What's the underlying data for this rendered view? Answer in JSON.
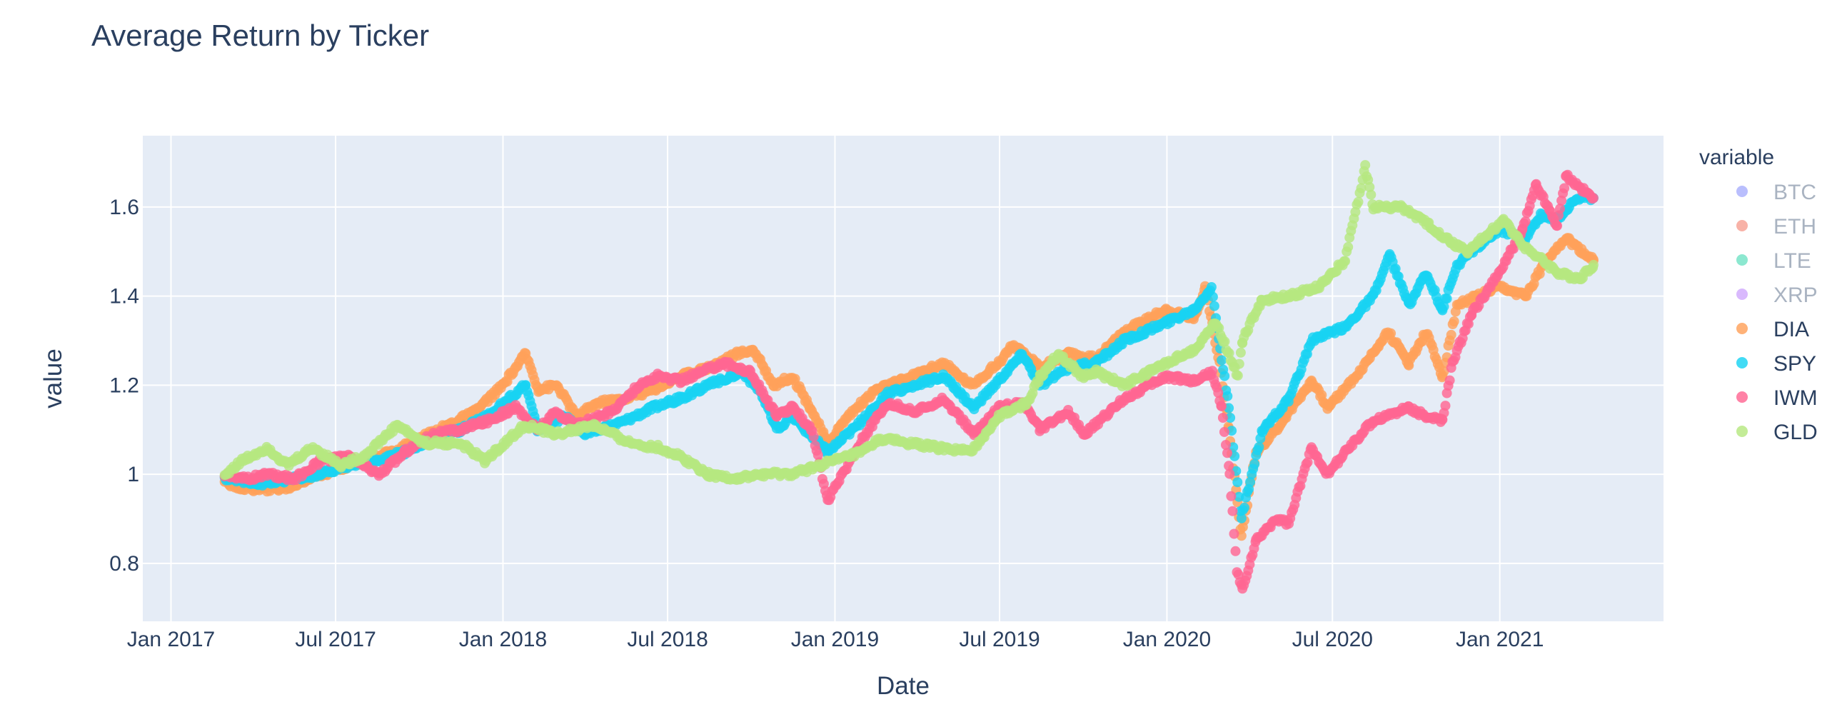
{
  "chart_data": {
    "type": "scatter",
    "title": "Average Return by Ticker",
    "xlabel": "Date",
    "ylabel": "value",
    "x_axis_type": "date",
    "xlim": [
      "2016-12-01",
      "2021-06-30"
    ],
    "ylim": [
      0.67,
      1.76
    ],
    "x_ticks": [
      {
        "value": "2017-01-01",
        "label": "Jan 2017"
      },
      {
        "value": "2017-07-01",
        "label": "Jul 2017"
      },
      {
        "value": "2018-01-01",
        "label": "Jan 2018"
      },
      {
        "value": "2018-07-01",
        "label": "Jul 2018"
      },
      {
        "value": "2019-01-01",
        "label": "Jan 2019"
      },
      {
        "value": "2019-07-01",
        "label": "Jul 2019"
      },
      {
        "value": "2020-01-01",
        "label": "Jan 2020"
      },
      {
        "value": "2020-07-01",
        "label": "Jul 2020"
      },
      {
        "value": "2021-01-01",
        "label": "Jan 2021"
      }
    ],
    "y_ticks": [
      {
        "value": 0.8,
        "label": "0.8"
      },
      {
        "value": 1.0,
        "label": "1"
      },
      {
        "value": 1.2,
        "label": "1.2"
      },
      {
        "value": 1.4,
        "label": "1.4"
      },
      {
        "value": 1.6,
        "label": "1.6"
      }
    ],
    "grid": true,
    "plot_background": "#e5ecf6",
    "legend": {
      "title": "variable",
      "placement": "right",
      "entries": [
        {
          "name": "BTC",
          "color": "#636efa",
          "hidden": true
        },
        {
          "name": "ETH",
          "color": "#ef553b",
          "hidden": true
        },
        {
          "name": "LTE",
          "color": "#00cc96",
          "hidden": true
        },
        {
          "name": "XRP",
          "color": "#ab63fa",
          "hidden": true
        },
        {
          "name": "DIA",
          "color": "#ffa15a",
          "hidden": false
        },
        {
          "name": "SPY",
          "color": "#19d3f3",
          "hidden": false
        },
        {
          "name": "IWM",
          "color": "#ff6692",
          "hidden": false
        },
        {
          "name": "GLD",
          "color": "#b6e880",
          "hidden": false
        }
      ]
    },
    "series": [
      {
        "name": "DIA",
        "color": "#ffa15a",
        "points": [
          [
            "2017-03-01",
            0.98
          ],
          [
            "2017-03-20",
            0.97
          ],
          [
            "2017-04-15",
            0.965
          ],
          [
            "2017-05-10",
            0.97
          ],
          [
            "2017-06-01",
            0.99
          ],
          [
            "2017-07-01",
            1.01
          ],
          [
            "2017-08-01",
            1.03
          ],
          [
            "2017-09-01",
            1.05
          ],
          [
            "2017-10-01",
            1.08
          ],
          [
            "2017-11-01",
            1.11
          ],
          [
            "2017-12-01",
            1.14
          ],
          [
            "2018-01-01",
            1.2
          ],
          [
            "2018-01-26",
            1.27
          ],
          [
            "2018-02-09",
            1.19
          ],
          [
            "2018-03-01",
            1.2
          ],
          [
            "2018-03-23",
            1.13
          ],
          [
            "2018-04-15",
            1.16
          ],
          [
            "2018-05-15",
            1.17
          ],
          [
            "2018-06-15",
            1.19
          ],
          [
            "2018-07-15",
            1.22
          ],
          [
            "2018-08-15",
            1.24
          ],
          [
            "2018-09-15",
            1.27
          ],
          [
            "2018-10-03",
            1.28
          ],
          [
            "2018-10-26",
            1.2
          ],
          [
            "2018-11-15",
            1.22
          ],
          [
            "2018-12-05",
            1.15
          ],
          [
            "2018-12-24",
            1.07
          ],
          [
            "2019-01-15",
            1.13
          ],
          [
            "2019-02-15",
            1.19
          ],
          [
            "2019-03-15",
            1.21
          ],
          [
            "2019-04-30",
            1.25
          ],
          [
            "2019-05-31",
            1.2
          ],
          [
            "2019-06-30",
            1.25
          ],
          [
            "2019-07-15",
            1.29
          ],
          [
            "2019-08-15",
            1.24
          ],
          [
            "2019-09-15",
            1.27
          ],
          [
            "2019-10-15",
            1.26
          ],
          [
            "2019-11-15",
            1.32
          ],
          [
            "2019-12-31",
            1.37
          ],
          [
            "2020-01-31",
            1.35
          ],
          [
            "2020-02-12",
            1.42
          ],
          [
            "2020-02-28",
            1.25
          ],
          [
            "2020-03-09",
            1.1
          ],
          [
            "2020-03-23",
            0.86
          ],
          [
            "2020-04-08",
            1.05
          ],
          [
            "2020-04-30",
            1.1
          ],
          [
            "2020-06-08",
            1.21
          ],
          [
            "2020-06-26",
            1.15
          ],
          [
            "2020-07-31",
            1.23
          ],
          [
            "2020-08-31",
            1.32
          ],
          [
            "2020-09-23",
            1.25
          ],
          [
            "2020-10-12",
            1.32
          ],
          [
            "2020-10-30",
            1.22
          ],
          [
            "2020-11-15",
            1.38
          ],
          [
            "2020-12-31",
            1.42
          ],
          [
            "2021-01-29",
            1.4
          ],
          [
            "2021-02-24",
            1.49
          ],
          [
            "2021-03-15",
            1.53
          ],
          [
            "2021-04-01",
            1.5
          ],
          [
            "2021-04-14",
            1.48
          ]
        ]
      },
      {
        "name": "SPY",
        "color": "#19d3f3",
        "points": [
          [
            "2017-03-01",
            0.99
          ],
          [
            "2017-04-13",
            0.98
          ],
          [
            "2017-05-15",
            0.99
          ],
          [
            "2017-06-15",
            1.0
          ],
          [
            "2017-07-15",
            1.02
          ],
          [
            "2017-08-15",
            1.03
          ],
          [
            "2017-09-15",
            1.05
          ],
          [
            "2017-10-15",
            1.08
          ],
          [
            "2017-11-15",
            1.1
          ],
          [
            "2017-12-15",
            1.13
          ],
          [
            "2018-01-26",
            1.2
          ],
          [
            "2018-02-08",
            1.1
          ],
          [
            "2018-03-10",
            1.13
          ],
          [
            "2018-04-02",
            1.09
          ],
          [
            "2018-05-15",
            1.12
          ],
          [
            "2018-06-15",
            1.15
          ],
          [
            "2018-07-15",
            1.17
          ],
          [
            "2018-08-15",
            1.2
          ],
          [
            "2018-09-20",
            1.23
          ],
          [
            "2018-10-10",
            1.19
          ],
          [
            "2018-10-29",
            1.1
          ],
          [
            "2018-11-15",
            1.13
          ],
          [
            "2018-12-24",
            1.05
          ],
          [
            "2019-01-31",
            1.12
          ],
          [
            "2019-02-28",
            1.18
          ],
          [
            "2019-04-30",
            1.22
          ],
          [
            "2019-06-03",
            1.15
          ],
          [
            "2019-07-26",
            1.27
          ],
          [
            "2019-08-15",
            1.2
          ],
          [
            "2019-09-15",
            1.24
          ],
          [
            "2019-10-15",
            1.25
          ],
          [
            "2019-11-15",
            1.3
          ],
          [
            "2019-12-31",
            1.34
          ],
          [
            "2020-01-31",
            1.37
          ],
          [
            "2020-02-19",
            1.42
          ],
          [
            "2020-03-09",
            1.15
          ],
          [
            "2020-03-23",
            0.9
          ],
          [
            "2020-04-15",
            1.1
          ],
          [
            "2020-05-15",
            1.17
          ],
          [
            "2020-06-08",
            1.3
          ],
          [
            "2020-07-15",
            1.33
          ],
          [
            "2020-08-15",
            1.4
          ],
          [
            "2020-09-02",
            1.49
          ],
          [
            "2020-09-23",
            1.38
          ],
          [
            "2020-10-12",
            1.45
          ],
          [
            "2020-10-30",
            1.37
          ],
          [
            "2020-11-15",
            1.47
          ],
          [
            "2020-12-31",
            1.55
          ],
          [
            "2021-01-29",
            1.53
          ],
          [
            "2021-02-15",
            1.58
          ],
          [
            "2021-03-04",
            1.57
          ],
          [
            "2021-03-26",
            1.62
          ],
          [
            "2021-04-14",
            1.62
          ]
        ]
      },
      {
        "name": "IWM",
        "color": "#ff6692",
        "points": [
          [
            "2017-03-01",
            1.0
          ],
          [
            "2017-03-27",
            0.99
          ],
          [
            "2017-04-15",
            1.0
          ],
          [
            "2017-05-17",
            0.99
          ],
          [
            "2017-06-15",
            1.03
          ],
          [
            "2017-07-15",
            1.04
          ],
          [
            "2017-08-18",
            1.0
          ],
          [
            "2017-09-15",
            1.05
          ],
          [
            "2017-10-15",
            1.09
          ],
          [
            "2017-11-15",
            1.1
          ],
          [
            "2017-12-15",
            1.12
          ],
          [
            "2018-01-15",
            1.15
          ],
          [
            "2018-02-08",
            1.1
          ],
          [
            "2018-02-28",
            1.14
          ],
          [
            "2018-03-23",
            1.11
          ],
          [
            "2018-04-30",
            1.14
          ],
          [
            "2018-05-31",
            1.2
          ],
          [
            "2018-06-20",
            1.22
          ],
          [
            "2018-07-15",
            1.21
          ],
          [
            "2018-08-31",
            1.25
          ],
          [
            "2018-09-30",
            1.23
          ],
          [
            "2018-10-29",
            1.13
          ],
          [
            "2018-11-15",
            1.15
          ],
          [
            "2018-12-07",
            1.1
          ],
          [
            "2018-12-24",
            0.94
          ],
          [
            "2019-01-31",
            1.08
          ],
          [
            "2019-02-28",
            1.16
          ],
          [
            "2019-03-31",
            1.14
          ],
          [
            "2019-04-30",
            1.17
          ],
          [
            "2019-06-03",
            1.09
          ],
          [
            "2019-06-30",
            1.15
          ],
          [
            "2019-07-26",
            1.16
          ],
          [
            "2019-08-15",
            1.1
          ],
          [
            "2019-09-15",
            1.14
          ],
          [
            "2019-10-03",
            1.09
          ],
          [
            "2019-11-15",
            1.17
          ],
          [
            "2019-12-31",
            1.22
          ],
          [
            "2020-01-31",
            1.21
          ],
          [
            "2020-02-20",
            1.23
          ],
          [
            "2020-03-01",
            1.15
          ],
          [
            "2020-03-10",
            1.0
          ],
          [
            "2020-03-18",
            0.78
          ],
          [
            "2020-03-24",
            0.74
          ],
          [
            "2020-04-08",
            0.85
          ],
          [
            "2020-04-30",
            0.9
          ],
          [
            "2020-05-14",
            0.89
          ],
          [
            "2020-06-08",
            1.06
          ],
          [
            "2020-06-26",
            1.0
          ],
          [
            "2020-07-15",
            1.05
          ],
          [
            "2020-08-15",
            1.12
          ],
          [
            "2020-09-23",
            1.15
          ],
          [
            "2020-10-12",
            1.13
          ],
          [
            "2020-10-30",
            1.12
          ],
          [
            "2020-11-10",
            1.25
          ],
          [
            "2020-12-01",
            1.36
          ],
          [
            "2020-12-31",
            1.45
          ],
          [
            "2021-01-26",
            1.55
          ],
          [
            "2021-02-10",
            1.65
          ],
          [
            "2021-03-05",
            1.56
          ],
          [
            "2021-03-15",
            1.67
          ],
          [
            "2021-04-14",
            1.62
          ]
        ]
      },
      {
        "name": "GLD",
        "color": "#b6e880",
        "points": [
          [
            "2017-03-01",
            1.0
          ],
          [
            "2017-03-20",
            1.03
          ],
          [
            "2017-04-17",
            1.06
          ],
          [
            "2017-05-09",
            1.02
          ],
          [
            "2017-06-06",
            1.06
          ],
          [
            "2017-07-07",
            1.02
          ],
          [
            "2017-08-01",
            1.04
          ],
          [
            "2017-09-07",
            1.11
          ],
          [
            "2017-10-06",
            1.07
          ],
          [
            "2017-11-15",
            1.07
          ],
          [
            "2017-12-12",
            1.03
          ],
          [
            "2018-01-25",
            1.11
          ],
          [
            "2018-03-01",
            1.09
          ],
          [
            "2018-04-11",
            1.11
          ],
          [
            "2018-05-21",
            1.07
          ],
          [
            "2018-06-21",
            1.06
          ],
          [
            "2018-07-15",
            1.04
          ],
          [
            "2018-08-15",
            1.0
          ],
          [
            "2018-09-15",
            0.99
          ],
          [
            "2018-10-15",
            1.0
          ],
          [
            "2018-11-15",
            1.0
          ],
          [
            "2018-12-15",
            1.02
          ],
          [
            "2019-01-31",
            1.05
          ],
          [
            "2019-02-20",
            1.08
          ],
          [
            "2019-04-23",
            1.06
          ],
          [
            "2019-05-31",
            1.05
          ],
          [
            "2019-06-30",
            1.13
          ],
          [
            "2019-07-31",
            1.16
          ],
          [
            "2019-08-15",
            1.22
          ],
          [
            "2019-09-04",
            1.27
          ],
          [
            "2019-09-30",
            1.22
          ],
          [
            "2019-10-15",
            1.23
          ],
          [
            "2019-11-15",
            1.2
          ],
          [
            "2019-12-31",
            1.25
          ],
          [
            "2020-01-31",
            1.28
          ],
          [
            "2020-02-24",
            1.34
          ],
          [
            "2020-03-19",
            1.22
          ],
          [
            "2020-03-24",
            1.3
          ],
          [
            "2020-04-14",
            1.39
          ],
          [
            "2020-05-15",
            1.4
          ],
          [
            "2020-06-15",
            1.42
          ],
          [
            "2020-07-15",
            1.48
          ],
          [
            "2020-08-06",
            1.69
          ],
          [
            "2020-08-15",
            1.6
          ],
          [
            "2020-09-15",
            1.6
          ],
          [
            "2020-10-15",
            1.56
          ],
          [
            "2020-11-09",
            1.52
          ],
          [
            "2020-11-27",
            1.5
          ],
          [
            "2021-01-05",
            1.57
          ],
          [
            "2021-01-29",
            1.51
          ],
          [
            "2021-03-08",
            1.45
          ],
          [
            "2021-03-30",
            1.44
          ],
          [
            "2021-04-14",
            1.47
          ]
        ]
      }
    ]
  }
}
